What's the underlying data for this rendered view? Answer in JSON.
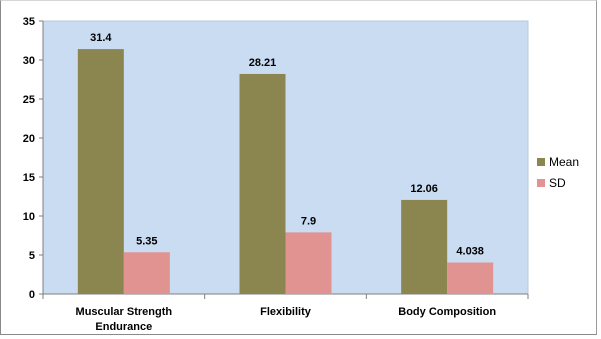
{
  "chart_data": {
    "type": "bar",
    "categories": [
      [
        "Muscular Strength",
        "Endurance"
      ],
      [
        "Flexibility"
      ],
      [
        "Body Composition"
      ]
    ],
    "series": [
      {
        "name": "Mean",
        "color": "#8b8650",
        "values": [
          31.4,
          28.21,
          12.06
        ],
        "labels": [
          "31.4",
          "28.21",
          "12.06"
        ]
      },
      {
        "name": "SD",
        "color": "#e09391",
        "values": [
          5.35,
          7.9,
          4.038
        ],
        "labels": [
          "5.35",
          "7.9",
          "4.038"
        ]
      }
    ],
    "ylim": [
      0,
      35
    ],
    "yticks": [
      0,
      5,
      10,
      15,
      20,
      25,
      30,
      35
    ],
    "plot_background": "#c9dcf2",
    "grid": false,
    "legend_position": "right",
    "title": "",
    "xlabel": "",
    "ylabel": ""
  }
}
